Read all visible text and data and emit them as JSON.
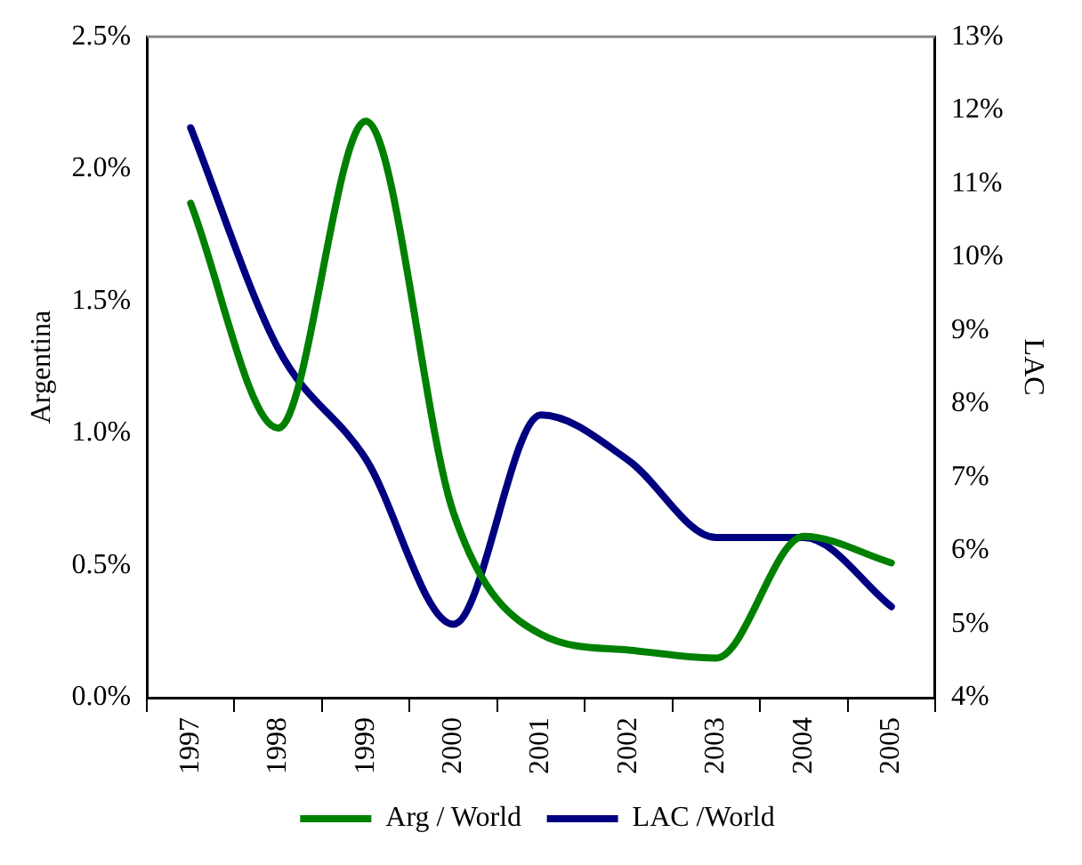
{
  "chart_data": {
    "type": "line",
    "ylabel": "Argentina",
    "y2label": "LAC",
    "categories": [
      "1997",
      "1998",
      "1999",
      "2000",
      "2001",
      "2002",
      "2003",
      "2004",
      "2005"
    ],
    "series": [
      {
        "name": "Arg / World",
        "color": "#008000",
        "values": [
          1.87,
          1.02,
          2.18,
          0.7,
          0.24,
          0.18,
          0.15,
          0.61,
          0.51
        ]
      },
      {
        "name": "LAC /World",
        "color": "#000080",
        "axis": "y2",
        "values": [
          11.76,
          8.75,
          7.25,
          5.0,
          7.85,
          7.23,
          6.18,
          6.18,
          5.24
        ]
      }
    ],
    "ylim": [
      0,
      2.5
    ],
    "yticks": [
      {
        "value": 0,
        "label": "0.0%"
      },
      {
        "value": 0.5,
        "label": "0.5%"
      },
      {
        "value": 1,
        "label": "1.0%"
      },
      {
        "value": 1.5,
        "label": "1.5%"
      },
      {
        "value": 2,
        "label": "2.0%"
      },
      {
        "value": 2.5,
        "label": "2.5%"
      }
    ],
    "y2lim": [
      4,
      13
    ],
    "y2ticks": [
      {
        "value": 4,
        "label": "4%"
      },
      {
        "value": 5,
        "label": "5%"
      },
      {
        "value": 6,
        "label": "6%"
      },
      {
        "value": 7,
        "label": "7%"
      },
      {
        "value": 8,
        "label": "8%"
      },
      {
        "value": 9,
        "label": "9%"
      },
      {
        "value": 10,
        "label": "10%"
      },
      {
        "value": 11,
        "label": "11%"
      },
      {
        "value": 12,
        "label": "12%"
      },
      {
        "value": 13,
        "label": "13%"
      }
    ],
    "grid": false,
    "legend": "bottom",
    "marker": "none",
    "line_style": "solid"
  }
}
